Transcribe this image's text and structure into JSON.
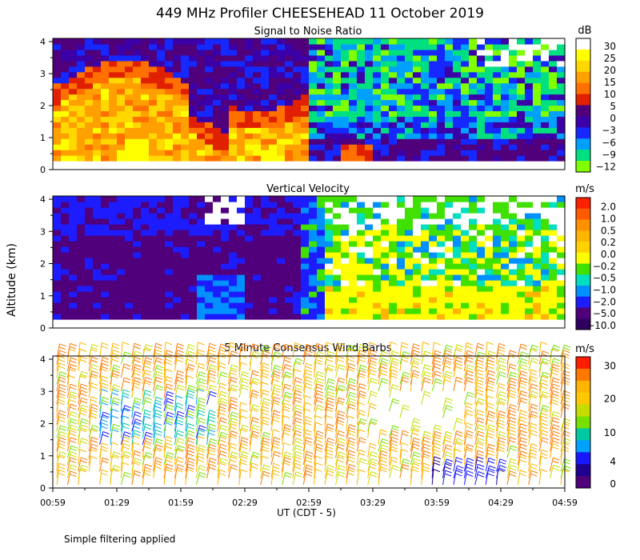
{
  "title": "449 MHz Profiler CHEESEHEAD 11 October 2019",
  "footnote": "Simple filtering applied",
  "colors": {
    "background": "#ffffff",
    "axis": "#000000"
  },
  "chart_data": [
    {
      "type": "heatmap",
      "title": "Signal to Noise Ratio",
      "ylabel": "Altitude (km)",
      "xlabel": "UT (CDT - 5)",
      "xlim": [
        "00:59",
        "04:59"
      ],
      "ylim": [
        0,
        4.1
      ],
      "ytick_labels": [
        "0",
        "1",
        "2",
        "3",
        "4"
      ],
      "unit": "dB",
      "colorbar_labels": [
        "30",
        "25",
        "20",
        "15",
        "10",
        "5",
        "0",
        "−3",
        "−6",
        "−9",
        "−12"
      ],
      "colorbar_colors": [
        "#ffffff",
        "#ffff00",
        "#ffd800",
        "#ffa000",
        "#ff7000",
        "#e02000",
        "#50007a",
        "#3c00a8",
        "#1428ff",
        "#00a0ff",
        "#00e080",
        "#80ff00"
      ],
      "description_values": "high SNR (15-30 dB) below ~2.5 km before ~02:40 UT, dropping to 0-5 dB later at low levels"
    },
    {
      "type": "heatmap",
      "title": "Vertical Velocity",
      "ylim": [
        0,
        4.1
      ],
      "ytick_labels": [
        "0",
        "1",
        "2",
        "3",
        "4"
      ],
      "unit": "m/s",
      "colorbar_labels": [
        "2.0",
        "1.0",
        "0.5",
        "0.2",
        "0.0",
        "−0.2",
        "−0.5",
        "−1.0",
        "−2.0",
        "−5.0",
        "−10.0"
      ],
      "colorbar_colors": [
        "#ff2000",
        "#ff5a00",
        "#ff9000",
        "#ffb400",
        "#ffd200",
        "#ffff00",
        "#40e000",
        "#00e0c0",
        "#0090ff",
        "#1c1cff",
        "#50007a",
        "#300060"
      ],
      "description_values": "strong downward motion (-2 to -5 m/s) before ~02:45 UT, near-zero (0 to 0.2 m/s) afterward"
    },
    {
      "type": "barbs",
      "title": "5 Minute Consensus Wind Barbs",
      "ylim": [
        0,
        4.1
      ],
      "ytick_labels": [
        "0",
        "1",
        "2",
        "3",
        "4"
      ],
      "x_tick_labels": [
        "00:59",
        "01:29",
        "01:59",
        "02:29",
        "02:59",
        "03:29",
        "03:59",
        "04:29",
        "04:59"
      ],
      "unit": "m/s",
      "colorbar_labels": [
        "30",
        "20",
        "10",
        "4",
        "0"
      ],
      "colorbar_colors": [
        "#ff1e00",
        "#ff7800",
        "#ffb400",
        "#ffc800",
        "#c8dc00",
        "#78e000",
        "#00c8a0",
        "#00a0ff",
        "#1818ff",
        "#200090",
        "#50007a"
      ],
      "description_values": "mostly 15-22 m/s southwesterly winds; weaker 0-10 m/s near 1.5-2.5 km around 01:10-02:00 UT"
    }
  ]
}
